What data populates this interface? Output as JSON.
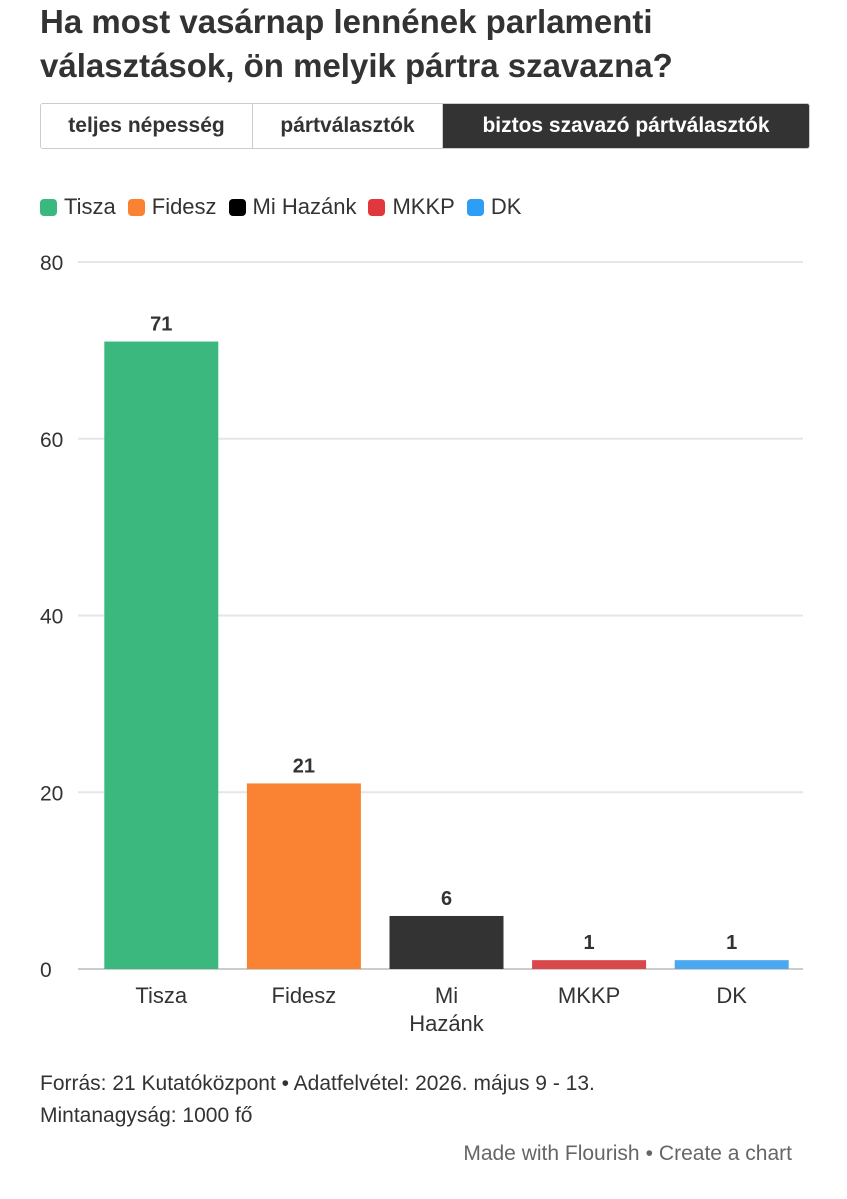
{
  "title": {
    "line1": "Ha most vasárnap lennének parlamenti",
    "line2": "választások, ön melyik pártra szavazna?"
  },
  "tabs": [
    {
      "label": "teljes népesség",
      "active": false
    },
    {
      "label": "pártválasztók",
      "active": false
    },
    {
      "label": "biztos szavazó pártválasztók",
      "active": true
    }
  ],
  "legend": [
    {
      "label": "Tisza",
      "color": "#3ab87e"
    },
    {
      "label": "Fidesz",
      "color": "#f98332"
    },
    {
      "label": "Mi Hazánk",
      "color": "#000000"
    },
    {
      "label": "MKKP",
      "color": "#e0383c"
    },
    {
      "label": "DK",
      "color": "#2d9ef5"
    }
  ],
  "chart_data": {
    "type": "bar",
    "categories": [
      "Tisza",
      "Fidesz",
      "Mi Hazánk",
      "MKKP",
      "DK"
    ],
    "category_lines": [
      [
        "Tisza"
      ],
      [
        "Fidesz"
      ],
      [
        "Mi",
        "Hazánk"
      ],
      [
        "MKKP"
      ],
      [
        "DK"
      ]
    ],
    "values": [
      71,
      21,
      6,
      1,
      1
    ],
    "colors": [
      "#3ab87e",
      "#f98332",
      "#333333",
      "#d9494c",
      "#4aa8f0"
    ],
    "ylim": [
      0,
      80
    ],
    "yticks": [
      0,
      20,
      40,
      60,
      80
    ],
    "grid": true,
    "legend_position": "top-left",
    "data_labels": true
  },
  "footer": {
    "source": "Forrás: 21 Kutatóközpont • Adatfelvétel: 2026. május 9 - 13.",
    "sample": "Mintanagyság: 1000 fő"
  },
  "attribution": {
    "made_with": "Made with Flourish",
    "separator": "•",
    "create": "Create a chart"
  }
}
